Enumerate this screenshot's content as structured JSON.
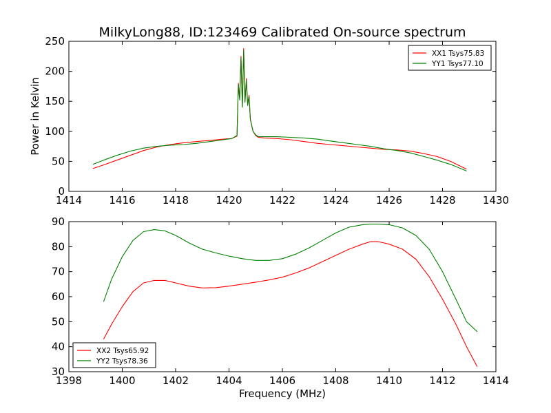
{
  "title": "MilkyLong88, ID:123469 Calibrated On-source spectrum",
  "chart_data": [
    {
      "type": "line",
      "panel": "top",
      "title": "",
      "xlabel": "",
      "ylabel": "Power in Kelvin",
      "xlim": [
        1414,
        1430
      ],
      "ylim": [
        0,
        250
      ],
      "xticks": [
        1414,
        1416,
        1418,
        1420,
        1422,
        1424,
        1426,
        1428,
        1430
      ],
      "yticks": [
        0,
        50,
        100,
        150,
        200,
        250
      ],
      "grid": false,
      "legend_position": "top-right",
      "series": [
        {
          "name": "XX1 Tsys75.83",
          "color": "#ff0000",
          "x": [
            1414.9,
            1415.3,
            1415.8,
            1416.3,
            1416.8,
            1417.3,
            1417.8,
            1418.3,
            1418.8,
            1419.3,
            1419.8,
            1420.1,
            1420.3,
            1420.35,
            1420.4,
            1420.45,
            1420.5,
            1420.55,
            1420.6,
            1420.65,
            1420.7,
            1420.75,
            1420.8,
            1420.85,
            1420.9,
            1421.0,
            1421.1,
            1421.3,
            1421.8,
            1422.3,
            1422.8,
            1423.3,
            1423.8,
            1424.3,
            1424.8,
            1425.3,
            1425.8,
            1426.3,
            1426.8,
            1427.3,
            1427.8,
            1428.3,
            1428.9
          ],
          "y": [
            38,
            44,
            52,
            60,
            68,
            74,
            78,
            81,
            83,
            85,
            87,
            88,
            92,
            180,
            155,
            225,
            142,
            238,
            150,
            188,
            145,
            160,
            120,
            110,
            100,
            93,
            90,
            89,
            88,
            86,
            83,
            80,
            78,
            76,
            74,
            72,
            70,
            69,
            67,
            63,
            58,
            50,
            37
          ]
        },
        {
          "name": "YY1 Tsys77.10",
          "color": "#008000",
          "x": [
            1414.9,
            1415.3,
            1415.8,
            1416.3,
            1416.8,
            1417.3,
            1417.8,
            1418.3,
            1418.8,
            1419.3,
            1419.8,
            1420.1,
            1420.3,
            1420.35,
            1420.4,
            1420.45,
            1420.5,
            1420.55,
            1420.6,
            1420.65,
            1420.7,
            1420.75,
            1420.8,
            1420.85,
            1420.9,
            1421.0,
            1421.1,
            1421.3,
            1421.8,
            1422.3,
            1422.8,
            1423.3,
            1423.8,
            1424.3,
            1424.8,
            1425.3,
            1425.8,
            1426.3,
            1426.8,
            1427.3,
            1427.8,
            1428.3,
            1428.9
          ],
          "y": [
            45,
            52,
            60,
            67,
            72,
            75,
            77,
            78,
            80,
            83,
            86,
            88,
            93,
            178,
            152,
            222,
            140,
            235,
            148,
            185,
            143,
            158,
            120,
            110,
            100,
            94,
            91,
            91,
            91,
            90,
            89,
            87,
            84,
            81,
            78,
            75,
            71,
            68,
            64,
            58,
            52,
            45,
            34
          ]
        }
      ]
    },
    {
      "type": "line",
      "panel": "bottom",
      "title": "",
      "xlabel": "Frequency (MHz)",
      "ylabel": "",
      "xlim": [
        1398,
        1414
      ],
      "ylim": [
        30,
        90
      ],
      "xticks": [
        1398,
        1400,
        1402,
        1404,
        1406,
        1408,
        1410,
        1412,
        1414
      ],
      "yticks": [
        30,
        40,
        50,
        60,
        70,
        80,
        90
      ],
      "grid": false,
      "legend_position": "bottom-left",
      "series": [
        {
          "name": "XX2 Tsys65.92",
          "color": "#ff0000",
          "x": [
            1399.3,
            1399.6,
            1400.0,
            1400.4,
            1400.8,
            1401.2,
            1401.6,
            1402.0,
            1402.5,
            1403.0,
            1403.5,
            1404.0,
            1404.5,
            1405.0,
            1405.5,
            1406.0,
            1406.5,
            1407.0,
            1407.5,
            1408.0,
            1408.5,
            1409.0,
            1409.3,
            1409.6,
            1410.0,
            1410.5,
            1411.0,
            1411.5,
            1412.0,
            1412.5,
            1412.9,
            1413.3
          ],
          "y": [
            43,
            49,
            56,
            62,
            65.5,
            66.5,
            66.5,
            65.5,
            64.2,
            63.5,
            63.6,
            64.2,
            65,
            65.8,
            66.7,
            67.8,
            69.5,
            71.5,
            74,
            76.5,
            79,
            81,
            82,
            82,
            81,
            79,
            75,
            68,
            59,
            49,
            40,
            32
          ]
        },
        {
          "name": "YY2 Tsys78.36",
          "color": "#008000",
          "x": [
            1399.3,
            1399.6,
            1400.0,
            1400.4,
            1400.8,
            1401.2,
            1401.6,
            1402.0,
            1402.5,
            1403.0,
            1403.5,
            1404.0,
            1404.5,
            1405.0,
            1405.5,
            1406.0,
            1406.5,
            1407.0,
            1407.5,
            1408.0,
            1408.5,
            1409.0,
            1409.3,
            1409.6,
            1410.0,
            1410.5,
            1411.0,
            1411.5,
            1412.0,
            1412.5,
            1412.9,
            1413.3
          ],
          "y": [
            58,
            67,
            76,
            82.5,
            86,
            86.8,
            86.3,
            84.5,
            81.5,
            79,
            77.5,
            76.2,
            75.2,
            74.5,
            74.5,
            75.2,
            77,
            79.5,
            82.5,
            85.5,
            87.8,
            88.8,
            89,
            89,
            88.8,
            87.5,
            84.5,
            79,
            70,
            59,
            50,
            46
          ]
        }
      ]
    }
  ]
}
